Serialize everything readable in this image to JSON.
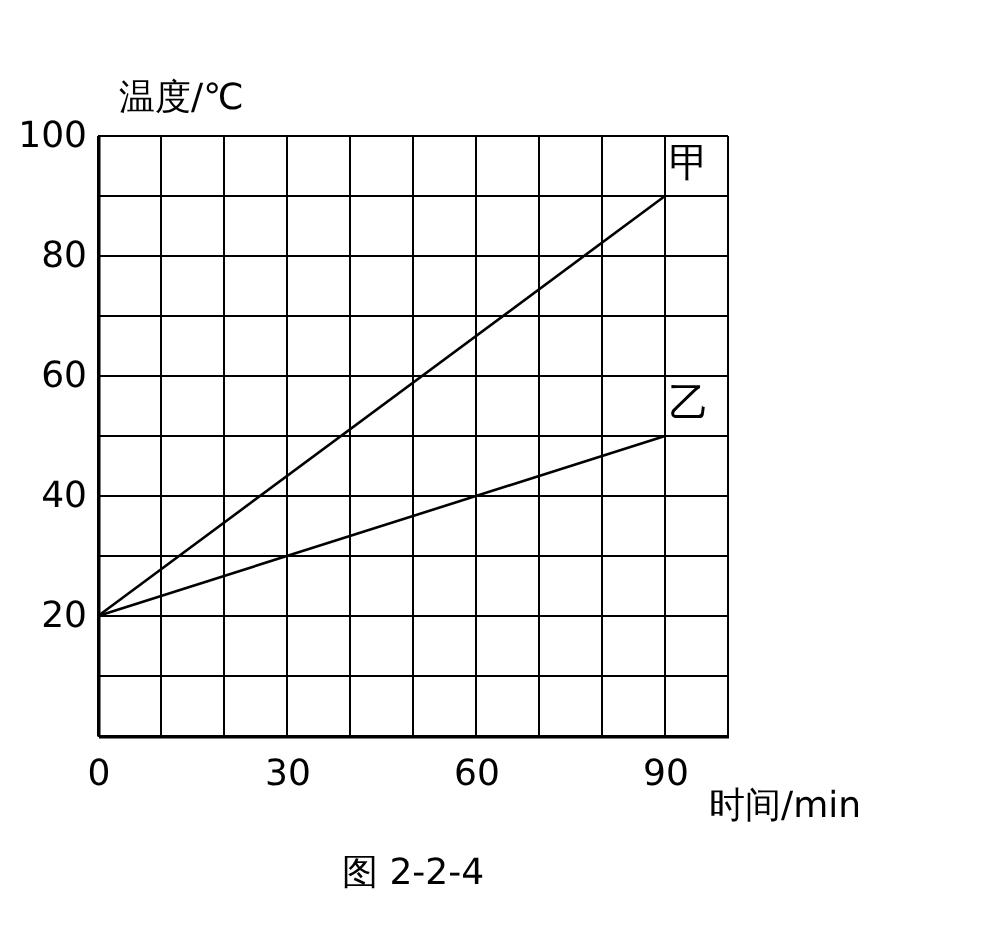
{
  "chart_data": {
    "type": "line",
    "xlabel": "时间/min",
    "ylabel": "温度/℃",
    "annotations": [
      "图 2-2-4"
    ],
    "x": [
      0,
      90
    ],
    "series": [
      {
        "name": "甲",
        "color": "#000000",
        "values": [
          20,
          90
        ]
      },
      {
        "name": "乙",
        "color": "#000000",
        "values": [
          20,
          50
        ]
      }
    ],
    "xlim": [
      0,
      100
    ],
    "ylim": [
      0,
      100
    ],
    "xticks": [
      0,
      {
        "value": 10,
        "label": null
      },
      {
        "value": 20,
        "label": null
      },
      30,
      {
        "value": 40,
        "label": null
      },
      {
        "value": 50,
        "label": null
      },
      60,
      {
        "value": 70,
        "label": null
      },
      {
        "value": 80,
        "label": null
      },
      90,
      {
        "value": 100,
        "label": null
      }
    ],
    "yticks": [
      {
        "value": 0,
        "label": null
      },
      {
        "value": 10,
        "label": null
      },
      20,
      {
        "value": 30,
        "label": null
      },
      40,
      {
        "value": 50,
        "label": null
      },
      60,
      {
        "value": 70,
        "label": null
      },
      80,
      {
        "value": 90,
        "label": null
      },
      100
    ],
    "grid": true,
    "legend": false,
    "marker": "none",
    "line_style": "solid"
  }
}
